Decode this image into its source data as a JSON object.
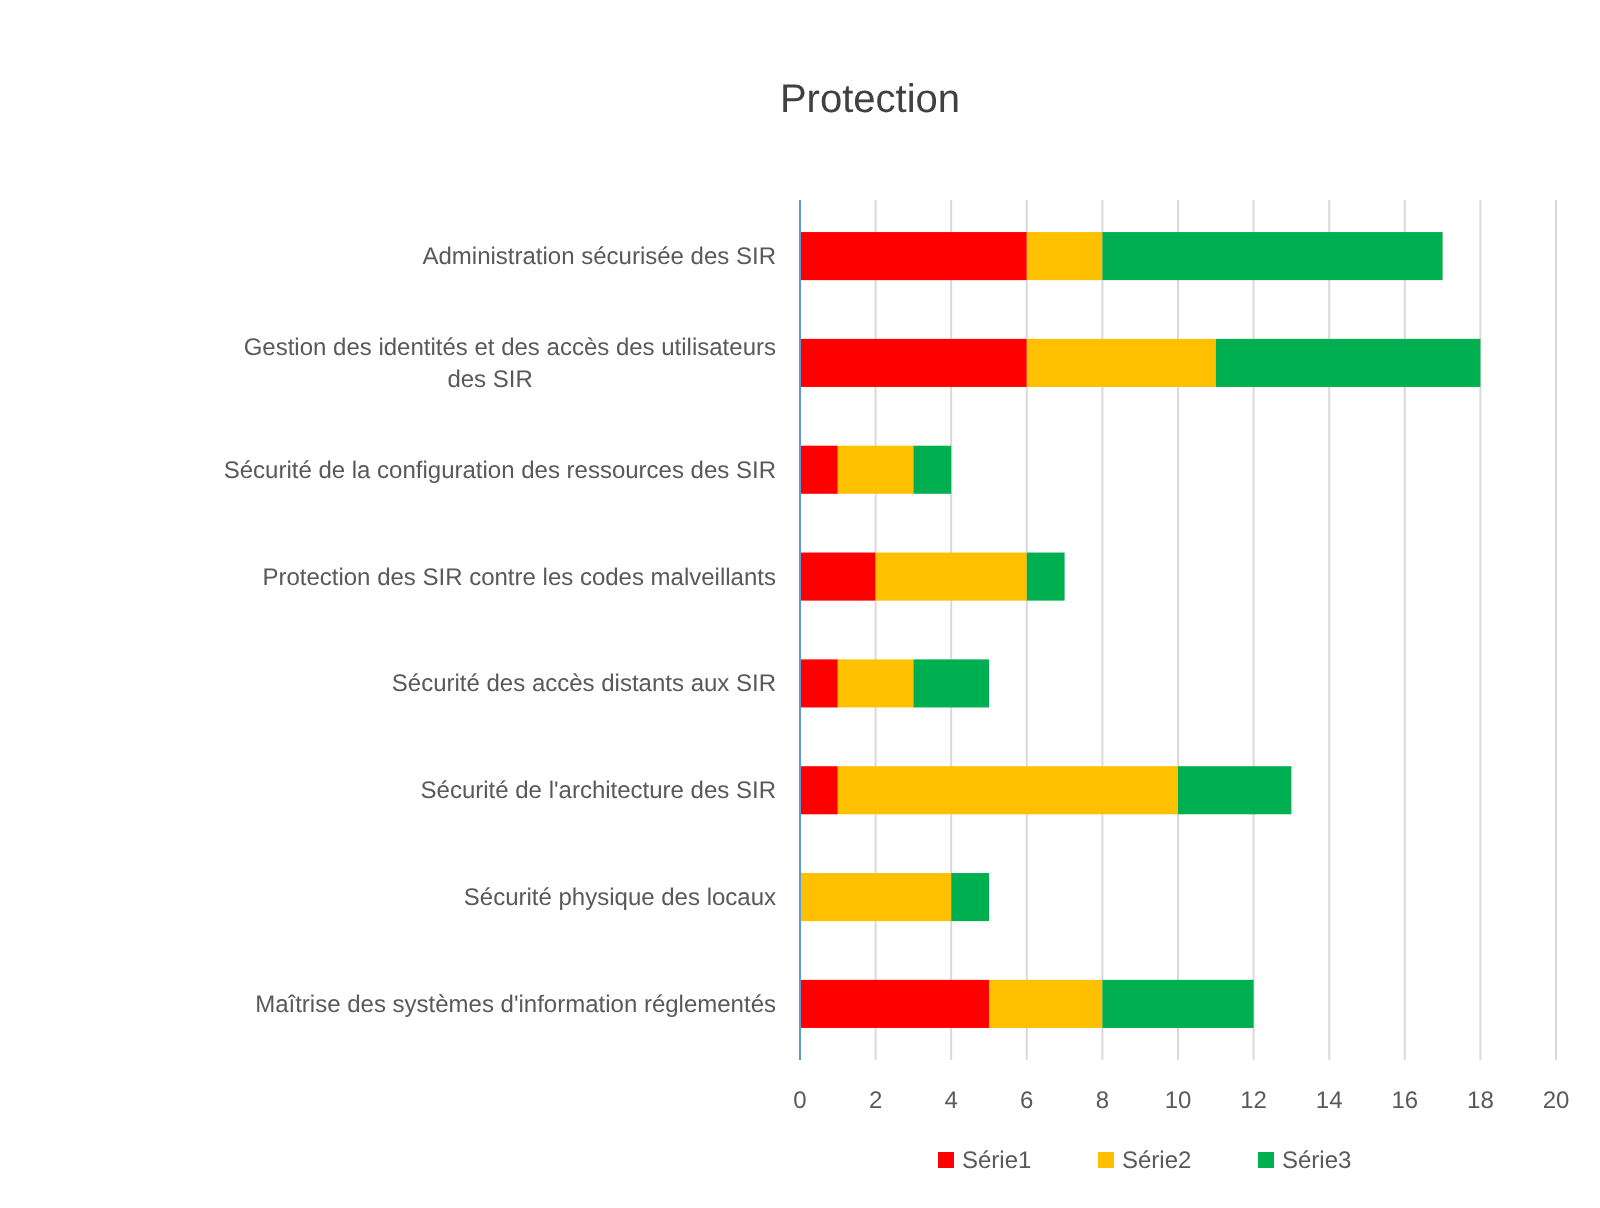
{
  "chart_data": {
    "type": "bar",
    "title": "Protection",
    "orientation": "horizontal",
    "stacked": true,
    "categories": [
      "Administration sécurisée des SIR",
      "Gestion des identités et des accès des utilisateurs des SIR",
      "Sécurité de la configuration des ressources des SIR",
      "Protection des SIR contre les codes malveillants",
      "Sécurité des accès distants aux SIR",
      "Sécurité de l'architecture des SIR",
      "Sécurité physique des locaux",
      "Maîtrise des systèmes d'information réglementés"
    ],
    "series": [
      {
        "name": "Série1",
        "color": "#ff0000",
        "values": [
          6,
          6,
          1,
          2,
          1,
          1,
          0,
          5
        ]
      },
      {
        "name": "Série2",
        "color": "#ffc000",
        "values": [
          2,
          5,
          2,
          4,
          2,
          9,
          4,
          3
        ]
      },
      {
        "name": "Série3",
        "color": "#00b050",
        "values": [
          9,
          7,
          1,
          1,
          2,
          3,
          1,
          4
        ]
      }
    ],
    "xlim": [
      0,
      20
    ],
    "xticks": [
      0,
      2,
      4,
      6,
      8,
      10,
      12,
      14,
      16,
      18,
      20
    ],
    "grid": "x",
    "legend": "bottom"
  }
}
